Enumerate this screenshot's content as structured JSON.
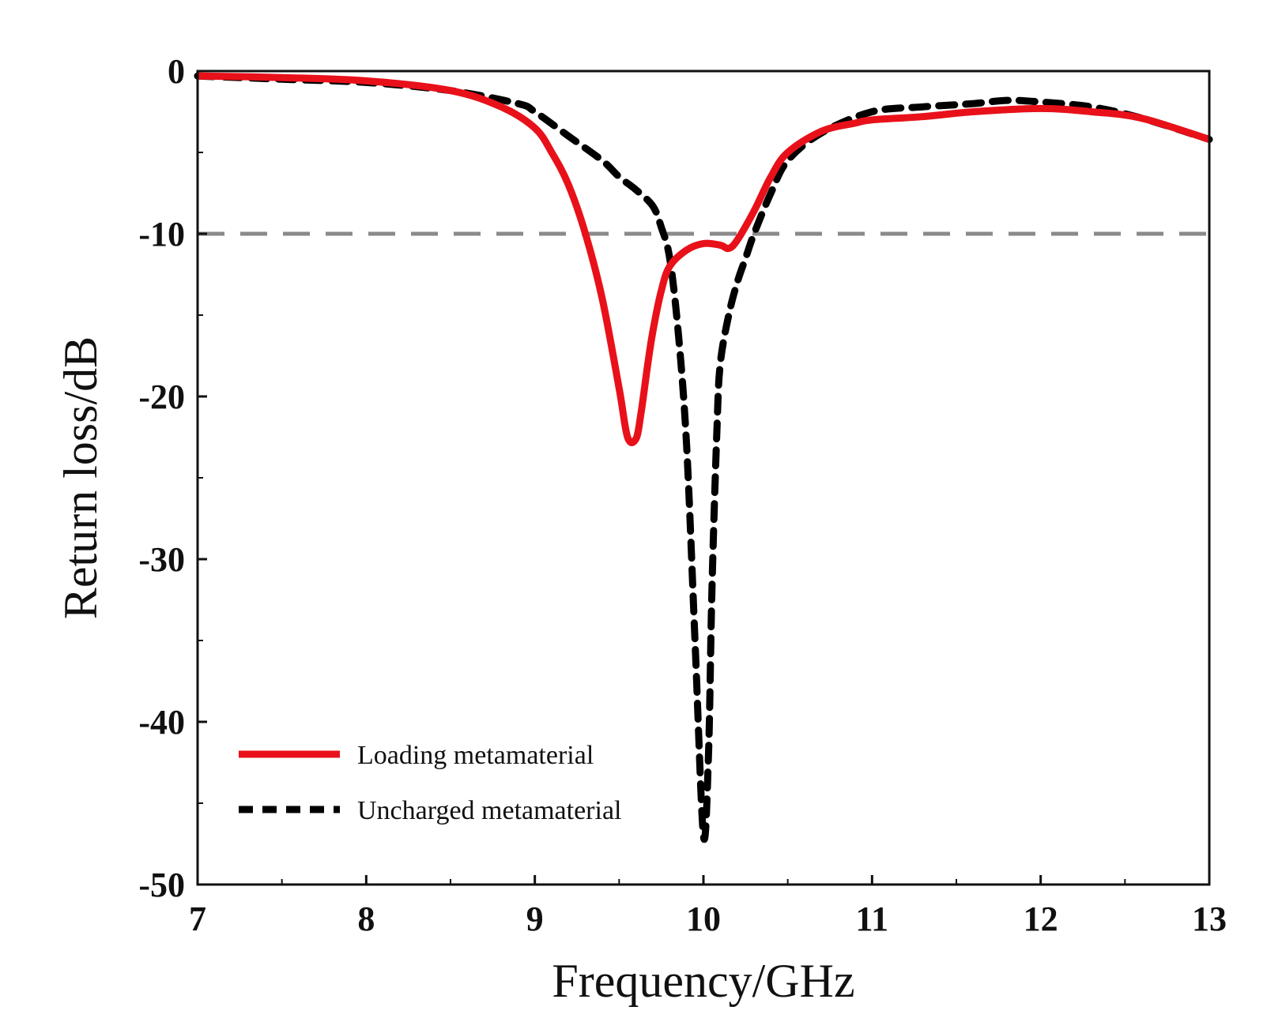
{
  "chart_data": {
    "type": "line",
    "title": "",
    "xlabel": "Frequency/GHz",
    "ylabel": "Return loss/dB",
    "xlim": [
      7,
      13
    ],
    "ylim": [
      -50,
      0
    ],
    "xticks": [
      7,
      8,
      9,
      10,
      11,
      12,
      13
    ],
    "xtick_labels": [
      "7",
      "8",
      "9",
      "10",
      "11",
      "12",
      "13"
    ],
    "yticks": [
      0,
      -10,
      -20,
      -30,
      -40,
      -50
    ],
    "ytick_labels": [
      "0",
      "-10",
      "-20",
      "-30",
      "-40",
      "-50"
    ],
    "grid": false,
    "legend_position": "bottom-left",
    "reference_line": {
      "y": -10,
      "style": "dashed",
      "color": "#8a8a8a"
    },
    "series": [
      {
        "name": "Loading metamaterial",
        "style": "solid",
        "color": "#e8111a",
        "x": [
          7.0,
          7.5,
          8.0,
          8.5,
          8.8,
          9.0,
          9.1,
          9.2,
          9.3,
          9.4,
          9.5,
          9.55,
          9.6,
          9.63,
          9.67,
          9.7,
          9.75,
          9.8,
          9.9,
          10.0,
          10.1,
          10.15,
          10.2,
          10.3,
          10.4,
          10.5,
          10.7,
          10.9,
          11.0,
          11.3,
          11.6,
          12.0,
          12.3,
          12.6,
          13.0
        ],
        "y": [
          -0.3,
          -0.4,
          -0.6,
          -1.2,
          -2.2,
          -3.5,
          -5.0,
          -7.0,
          -10.0,
          -14.0,
          -19.5,
          -22.5,
          -22.6,
          -21.0,
          -18.0,
          -16.0,
          -13.5,
          -12.0,
          -11.0,
          -10.6,
          -10.7,
          -10.9,
          -10.4,
          -8.6,
          -6.5,
          -5.0,
          -3.7,
          -3.2,
          -3.0,
          -2.8,
          -2.5,
          -2.3,
          -2.5,
          -2.9,
          -4.2
        ]
      },
      {
        "name": "Uncharged metamaterial",
        "style": "dashed",
        "color": "#000000",
        "x": [
          7.0,
          7.5,
          8.0,
          8.5,
          8.9,
          9.0,
          9.2,
          9.4,
          9.5,
          9.6,
          9.7,
          9.75,
          9.8,
          9.85,
          9.9,
          9.95,
          10.0,
          10.03,
          10.05,
          10.08,
          10.1,
          10.15,
          10.2,
          10.25,
          10.3,
          10.4,
          10.5,
          10.7,
          11.0,
          11.3,
          11.6,
          11.8,
          12.0,
          12.3,
          12.6,
          13.0
        ],
        "y": [
          -0.3,
          -0.5,
          -0.7,
          -1.2,
          -2.0,
          -2.5,
          -4.0,
          -5.5,
          -6.5,
          -7.3,
          -8.3,
          -9.6,
          -11.5,
          -16.0,
          -23.0,
          -35.0,
          -47.0,
          -42.0,
          -32.0,
          -22.0,
          -18.0,
          -15.0,
          -13.0,
          -11.5,
          -10.0,
          -7.5,
          -5.5,
          -3.8,
          -2.5,
          -2.2,
          -2.0,
          -1.8,
          -1.9,
          -2.2,
          -2.9,
          -4.2
        ]
      }
    ]
  }
}
